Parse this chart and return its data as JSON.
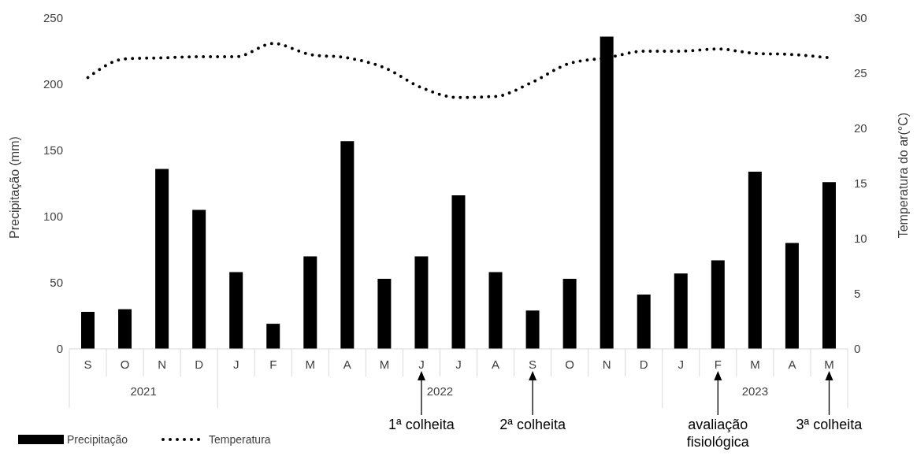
{
  "chart_data": {
    "type": "bar",
    "categories": [
      "S",
      "O",
      "N",
      "D",
      "J",
      "F",
      "M",
      "A",
      "M",
      "J",
      "J",
      "A",
      "S",
      "O",
      "N",
      "D",
      "J",
      "F",
      "M",
      "A",
      "M"
    ],
    "series": [
      {
        "name": "Precipitação",
        "color": "#000000",
        "values": [
          28,
          30,
          136,
          105,
          58,
          19,
          70,
          157,
          53,
          70,
          116,
          58,
          29,
          53,
          236,
          41,
          57,
          67,
          134,
          80,
          126
        ]
      },
      {
        "name": "Temperatura",
        "type": "line",
        "axis": "y2",
        "color": "#000000",
        "line_style": "dotted",
        "marker": "none",
        "values": [
          24.6,
          26.3,
          26.4,
          26.5,
          26.5,
          27.7,
          26.7,
          26.4,
          25.5,
          23.7,
          22.8,
          22.9,
          24.2,
          25.9,
          26.4,
          27.0,
          27.0,
          27.2,
          26.8,
          26.7,
          26.4
        ]
      }
    ],
    "ylabel": "Precipitação (mm)",
    "y2label": "Temperatura do ar(°C)",
    "ylim": [
      0,
      250
    ],
    "yticks": [
      0,
      50,
      100,
      150,
      200,
      250
    ],
    "y2lim": [
      0,
      30
    ],
    "y2ticks": [
      0,
      5,
      10,
      15,
      20,
      25,
      30
    ],
    "legend": "bottom left",
    "grid": false,
    "annotations": [
      "2021",
      "2022",
      "2023",
      "1ª colheita",
      "2ª colheita",
      "avaliação fisiológica",
      "3ª colheita"
    ]
  }
}
